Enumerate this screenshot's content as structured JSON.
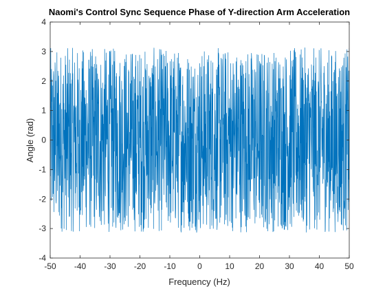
{
  "chart_data": {
    "type": "line",
    "title": "Naomi's Control Sync Sequence Phase of Y-direction Arm Acceleration",
    "xlabel": "Frequency (Hz)",
    "ylabel": "Angle (rad)",
    "xlim": [
      -50,
      50
    ],
    "ylim": [
      -4,
      4
    ],
    "x_ticks": [
      -50,
      -40,
      -30,
      -20,
      -10,
      0,
      10,
      20,
      30,
      40,
      50
    ],
    "y_ticks": [
      -4,
      -3,
      -2,
      -1,
      0,
      1,
      2,
      3,
      4
    ],
    "grid": false,
    "legend": "none",
    "series": [
      {
        "color": "#0072BD",
        "x_start": -50,
        "x_end": 50,
        "num_points": 1600,
        "value_range": [
          -3.14,
          3.14
        ],
        "description_of_values": "dense phase noise spanning roughly -pi to pi across the full frequency range"
      }
    ]
  }
}
